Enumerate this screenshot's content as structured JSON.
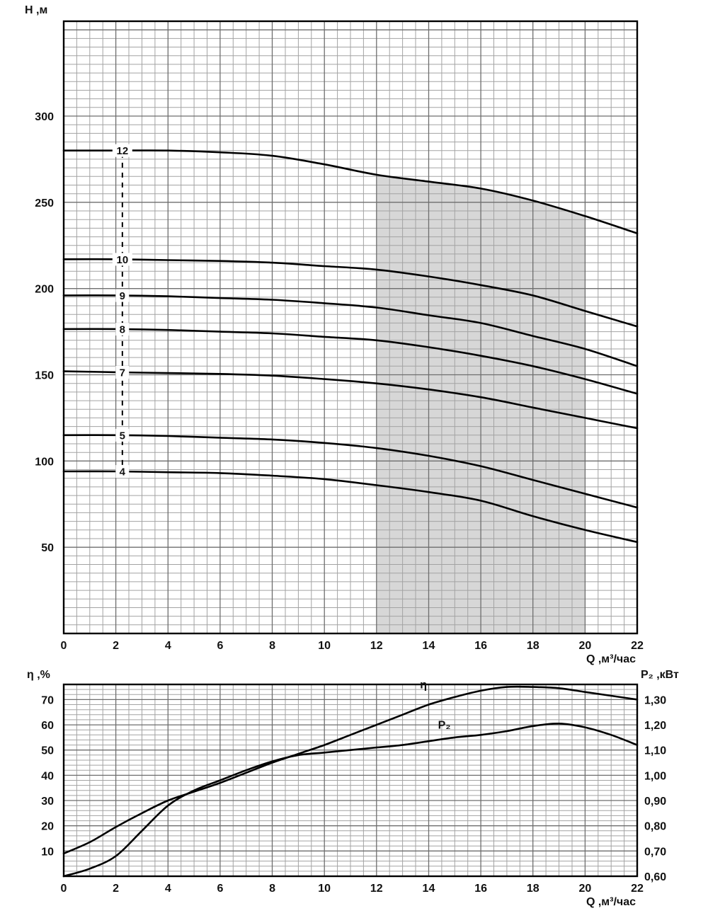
{
  "page": {
    "background": "#ffffff",
    "text_color": "#111111"
  },
  "style": {
    "grid_minor_color": "#a3a3a3",
    "grid_major_color": "#6e6e6e",
    "border_color": "#000000",
    "curve_color": "#000000",
    "shade_color": "#d7d7d7"
  },
  "chart_data": [
    {
      "id": "head-flow-curves",
      "type": "line",
      "title": "",
      "ylabel": "H ,м",
      "xlabel": "Q ,м³/час",
      "xlim": [
        0,
        22
      ],
      "ylim": [
        0,
        355
      ],
      "x_major_step": 2,
      "x_minor_step": 0.5,
      "y_major_step": 50,
      "y_minor_step": 5,
      "x_ticks": [
        0,
        2,
        4,
        6,
        8,
        10,
        12,
        14,
        16,
        18,
        20,
        22
      ],
      "y_ticks": [
        50,
        100,
        150,
        200,
        250,
        300
      ],
      "grid": true,
      "legend": "curve labels are number of pump stages",
      "shaded_region": {
        "x_from": 12,
        "x_to": 20,
        "bounded_above_by": "12",
        "color": "#d7d7d7"
      },
      "dashed_guide": {
        "x": 2.25,
        "y_from": 92,
        "y_to": 281
      },
      "series": [
        {
          "name": "12",
          "label": "12",
          "label_x": 2.25,
          "axis": "left",
          "points": [
            [
              0,
              280
            ],
            [
              2,
              280
            ],
            [
              4,
              280
            ],
            [
              6,
              279
            ],
            [
              8,
              277
            ],
            [
              10,
              272
            ],
            [
              12,
              266
            ],
            [
              14,
              262
            ],
            [
              16,
              258
            ],
            [
              18,
              251
            ],
            [
              20,
              242
            ],
            [
              22,
              232
            ]
          ]
        },
        {
          "name": "10",
          "label": "10",
          "label_x": 2.25,
          "axis": "left",
          "points": [
            [
              0,
              217
            ],
            [
              2,
              217
            ],
            [
              4,
              216.5
            ],
            [
              6,
              216
            ],
            [
              8,
              215
            ],
            [
              10,
              213
            ],
            [
              12,
              211
            ],
            [
              14,
              207
            ],
            [
              16,
              202
            ],
            [
              18,
              196
            ],
            [
              20,
              187
            ],
            [
              22,
              178
            ]
          ]
        },
        {
          "name": "9",
          "label": "9",
          "label_x": 2.25,
          "axis": "left",
          "points": [
            [
              0,
              196
            ],
            [
              2,
              196
            ],
            [
              4,
              195.5
            ],
            [
              6,
              194.5
            ],
            [
              8,
              193.5
            ],
            [
              10,
              191.5
            ],
            [
              12,
              189
            ],
            [
              14,
              184.5
            ],
            [
              16,
              180
            ],
            [
              18,
              172.5
            ],
            [
              20,
              165
            ],
            [
              22,
              155
            ]
          ]
        },
        {
          "name": "8",
          "label": "8",
          "label_x": 2.25,
          "axis": "left",
          "points": [
            [
              0,
              176.5
            ],
            [
              2,
              176.5
            ],
            [
              4,
              176
            ],
            [
              6,
              175
            ],
            [
              8,
              174
            ],
            [
              10,
              172
            ],
            [
              12,
              170
            ],
            [
              14,
              166
            ],
            [
              16,
              161
            ],
            [
              18,
              155
            ],
            [
              20,
              147.5
            ],
            [
              22,
              139
            ]
          ]
        },
        {
          "name": "7",
          "label": "7",
          "label_x": 2.25,
          "axis": "left",
          "points": [
            [
              0,
              152
            ],
            [
              2,
              151.5
            ],
            [
              4,
              151
            ],
            [
              6,
              150.5
            ],
            [
              8,
              149.5
            ],
            [
              10,
              147.5
            ],
            [
              12,
              145
            ],
            [
              14,
              141.5
            ],
            [
              16,
              137
            ],
            [
              18,
              131
            ],
            [
              20,
              125
            ],
            [
              22,
              119
            ]
          ]
        },
        {
          "name": "5",
          "label": "5",
          "label_x": 2.25,
          "axis": "left",
          "points": [
            [
              0,
              115
            ],
            [
              2,
              115
            ],
            [
              4,
              114.5
            ],
            [
              6,
              113.5
            ],
            [
              8,
              112.5
            ],
            [
              10,
              110.5
            ],
            [
              12,
              107.5
            ],
            [
              14,
              103
            ],
            [
              16,
              97
            ],
            [
              18,
              89
            ],
            [
              20,
              81
            ],
            [
              22,
              73
            ]
          ]
        },
        {
          "name": "4",
          "label": "4",
          "label_x": 2.25,
          "axis": "left",
          "points": [
            [
              0,
              94
            ],
            [
              2,
              94
            ],
            [
              4,
              93.5
            ],
            [
              6,
              93
            ],
            [
              8,
              91.5
            ],
            [
              10,
              89.5
            ],
            [
              12,
              86
            ],
            [
              14,
              82
            ],
            [
              16,
              77
            ],
            [
              18,
              68
            ],
            [
              20,
              60
            ],
            [
              22,
              53
            ]
          ]
        }
      ]
    },
    {
      "id": "efficiency-power-curves",
      "type": "line",
      "title": "",
      "ylabel_left": "η ,%",
      "ylabel_right": "P₂ ,кВт",
      "xlabel": "Q ,м³/час",
      "xlim": [
        0,
        22
      ],
      "ylim_left": [
        0,
        76
      ],
      "ylim_right": [
        0.6,
        1.36
      ],
      "x_major_step": 2,
      "x_minor_step": 0.5,
      "y_major_step": 10,
      "y_minor_step": 2,
      "x_ticks": [
        0,
        2,
        4,
        6,
        8,
        10,
        12,
        14,
        16,
        18,
        20,
        22
      ],
      "y_ticks_left": [
        10,
        20,
        30,
        40,
        50,
        60,
        70
      ],
      "y_ticks_right_values": [
        0.6,
        0.7,
        0.8,
        0.9,
        1.0,
        1.1,
        1.2,
        1.3
      ],
      "y_ticks_right_labels": [
        "0,60",
        "0,70",
        "0,80",
        "0,90",
        "1,00",
        "1,10",
        "1,20",
        "1,30"
      ],
      "grid": true,
      "series": [
        {
          "name": "eta",
          "label": "η",
          "axis": "left",
          "label_pos": [
            13.8,
            74.5
          ],
          "points": [
            [
              0,
              9
            ],
            [
              1,
              13.5
            ],
            [
              2,
              19.5
            ],
            [
              3,
              25
            ],
            [
              4,
              30
            ],
            [
              5,
              33.5
            ],
            [
              6,
              37
            ],
            [
              7,
              41
            ],
            [
              8,
              45
            ],
            [
              9,
              48.5
            ],
            [
              10,
              52
            ],
            [
              11,
              56
            ],
            [
              12,
              60
            ],
            [
              13,
              64
            ],
            [
              14,
              68
            ],
            [
              15,
              71
            ],
            [
              16,
              73.5
            ],
            [
              17,
              75
            ],
            [
              18,
              75
            ],
            [
              19,
              74.5
            ],
            [
              20,
              73
            ],
            [
              21,
              71.5
            ],
            [
              22,
              70
            ]
          ]
        },
        {
          "name": "P2",
          "label": "P₂",
          "axis": "right",
          "label_pos": [
            14.6,
            1.185
          ],
          "points": [
            [
              0,
              0.6
            ],
            [
              1,
              0.63
            ],
            [
              2,
              0.68
            ],
            [
              3,
              0.78
            ],
            [
              4,
              0.88
            ],
            [
              5,
              0.94
            ],
            [
              6,
              0.98
            ],
            [
              7,
              1.02
            ],
            [
              8,
              1.055
            ],
            [
              9,
              1.08
            ],
            [
              10,
              1.09
            ],
            [
              11,
              1.1
            ],
            [
              12,
              1.11
            ],
            [
              13,
              1.12
            ],
            [
              14,
              1.135
            ],
            [
              15,
              1.15
            ],
            [
              16,
              1.16
            ],
            [
              17,
              1.175
            ],
            [
              18,
              1.195
            ],
            [
              19,
              1.205
            ],
            [
              20,
              1.19
            ],
            [
              21,
              1.16
            ],
            [
              22,
              1.12
            ]
          ]
        }
      ]
    }
  ]
}
